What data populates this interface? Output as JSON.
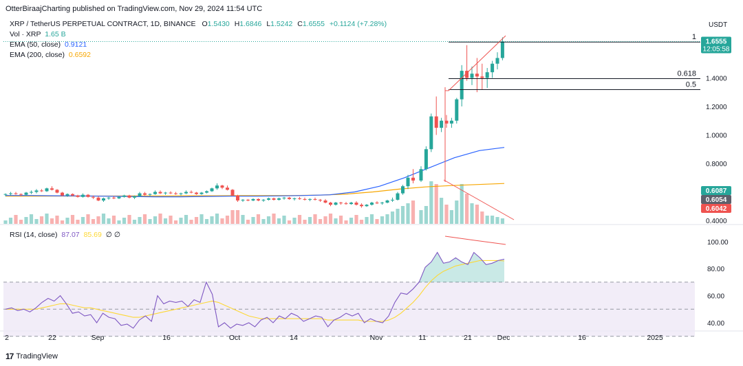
{
  "header": {
    "publisher": "OtterBiraajCharting published on TradingView.com, Nov 29, 2024 11:54 UTC"
  },
  "legend": {
    "symbol": "XRP / TetherUS PERPETUAL CONTRACT, 1D, BINANCE",
    "o_label": "O",
    "o_value": "1.5430",
    "h_label": "H",
    "h_value": "1.6846",
    "l_label": "L",
    "l_value": "1.5242",
    "c_label": "C",
    "c_value": "1.6555",
    "change": "+0.1124 (+7.28%)",
    "vol_label": "Vol · XRP",
    "vol_value": "1.65 B",
    "ema50_label": "EMA (50, close)",
    "ema50_value": "0.9121",
    "ema200_label": "EMA (200, close)",
    "ema200_value": "0.6592",
    "rsi_label": "RSI (14, close)",
    "rsi_value": "87.07",
    "rsi_ma_value": "85.69",
    "rsi_extra": "∅ ∅"
  },
  "footer": {
    "brand": "TradingView"
  },
  "colors": {
    "up": "#26a69a",
    "down": "#ef5350",
    "ema50": "#2962ff",
    "ema200": "#f7a600",
    "rsi": "#7e57c2",
    "rsi_ma": "#fdd835",
    "fib": "#131722"
  },
  "chart_data": [
    {
      "type": "candlestick",
      "title": "XRP / TetherUS PERPETUAL CONTRACT, 1D, BINANCE",
      "x_tick_labels": [
        "2",
        "22",
        "Sep",
        "16",
        "Oct",
        "14",
        "Nov",
        "11",
        "21",
        "Dec",
        "16",
        "2025"
      ],
      "y_axis_label": "USDT",
      "y_tick_labels": [
        "1.4000",
        "1.2000",
        "1.0000",
        "0.8000",
        "0.4000"
      ],
      "ylim": [
        0.4,
        1.72
      ],
      "price_badges": [
        {
          "value": "1.6555",
          "sub": "12:05:58",
          "color": "#26a69a"
        },
        {
          "value": "0.6087",
          "color": "#26a69a"
        },
        {
          "value": "0.6054",
          "color": "#5d606b"
        },
        {
          "value": "0.6042",
          "color": "#ef5350"
        }
      ],
      "fib_levels": [
        {
          "label": "1",
          "value": 1.652
        },
        {
          "label": "0.618",
          "value": 1.395
        },
        {
          "label": "0.5",
          "value": 1.318
        }
      ],
      "bars_before_rally": [
        [
          0.58,
          0.59,
          0.57,
          0.585
        ],
        [
          0.585,
          0.6,
          0.575,
          0.59
        ],
        [
          0.59,
          0.6,
          0.58,
          0.585
        ],
        [
          0.585,
          0.59,
          0.57,
          0.58
        ],
        [
          0.58,
          0.6,
          0.575,
          0.595
        ],
        [
          0.595,
          0.61,
          0.585,
          0.6
        ],
        [
          0.6,
          0.62,
          0.59,
          0.61
        ],
        [
          0.61,
          0.62,
          0.6,
          0.605
        ],
        [
          0.605,
          0.63,
          0.6,
          0.625
        ],
        [
          0.625,
          0.64,
          0.61,
          0.615
        ],
        [
          0.615,
          0.62,
          0.59,
          0.595
        ],
        [
          0.595,
          0.6,
          0.57,
          0.575
        ],
        [
          0.575,
          0.59,
          0.565,
          0.585
        ],
        [
          0.585,
          0.59,
          0.57,
          0.575
        ],
        [
          0.575,
          0.58,
          0.56,
          0.565
        ],
        [
          0.565,
          0.59,
          0.56,
          0.58
        ],
        [
          0.58,
          0.585,
          0.56,
          0.565
        ],
        [
          0.565,
          0.575,
          0.55,
          0.56
        ],
        [
          0.56,
          0.57,
          0.535,
          0.54
        ],
        [
          0.54,
          0.56,
          0.53,
          0.555
        ],
        [
          0.555,
          0.565,
          0.545,
          0.56
        ],
        [
          0.56,
          0.57,
          0.55,
          0.555
        ],
        [
          0.555,
          0.57,
          0.55,
          0.565
        ],
        [
          0.565,
          0.58,
          0.56,
          0.575
        ],
        [
          0.575,
          0.58,
          0.555,
          0.56
        ],
        [
          0.56,
          0.575,
          0.55,
          0.57
        ],
        [
          0.57,
          0.6,
          0.565,
          0.59
        ],
        [
          0.59,
          0.6,
          0.575,
          0.58
        ],
        [
          0.58,
          0.59,
          0.57,
          0.585
        ],
        [
          0.585,
          0.61,
          0.58,
          0.6
        ],
        [
          0.6,
          0.61,
          0.585,
          0.59
        ],
        [
          0.59,
          0.6,
          0.58,
          0.595
        ],
        [
          0.595,
          0.605,
          0.585,
          0.59
        ],
        [
          0.59,
          0.6,
          0.58,
          0.585
        ],
        [
          0.585,
          0.595,
          0.575,
          0.59
        ],
        [
          0.59,
          0.61,
          0.585,
          0.6
        ],
        [
          0.6,
          0.61,
          0.59,
          0.595
        ],
        [
          0.595,
          0.6,
          0.58,
          0.585
        ],
        [
          0.585,
          0.6,
          0.58,
          0.595
        ],
        [
          0.595,
          0.61,
          0.59,
          0.605
        ],
        [
          0.605,
          0.63,
          0.6,
          0.625
        ],
        [
          0.625,
          0.66,
          0.615,
          0.645
        ],
        [
          0.645,
          0.65,
          0.62,
          0.63
        ],
        [
          0.63,
          0.645,
          0.61,
          0.615
        ],
        [
          0.615,
          0.62,
          0.57,
          0.575
        ],
        [
          0.575,
          0.58,
          0.53,
          0.54
        ],
        [
          0.54,
          0.55,
          0.53,
          0.545
        ],
        [
          0.545,
          0.55,
          0.535,
          0.54
        ],
        [
          0.54,
          0.555,
          0.535,
          0.55
        ],
        [
          0.55,
          0.555,
          0.535,
          0.54
        ],
        [
          0.54,
          0.55,
          0.53,
          0.545
        ],
        [
          0.545,
          0.56,
          0.54,
          0.555
        ],
        [
          0.555,
          0.56,
          0.54,
          0.545
        ],
        [
          0.545,
          0.56,
          0.54,
          0.555
        ],
        [
          0.555,
          0.565,
          0.545,
          0.56
        ],
        [
          0.56,
          0.565,
          0.545,
          0.55
        ],
        [
          0.55,
          0.56,
          0.54,
          0.555
        ],
        [
          0.555,
          0.565,
          0.545,
          0.55
        ],
        [
          0.55,
          0.56,
          0.54,
          0.545
        ],
        [
          0.545,
          0.555,
          0.535,
          0.55
        ],
        [
          0.55,
          0.56,
          0.54,
          0.545
        ],
        [
          0.545,
          0.55,
          0.53,
          0.54
        ],
        [
          0.54,
          0.55,
          0.52,
          0.525
        ],
        [
          0.525,
          0.53,
          0.5,
          0.51
        ],
        [
          0.51,
          0.53,
          0.505,
          0.525
        ],
        [
          0.525,
          0.53,
          0.51,
          0.52
        ],
        [
          0.52,
          0.53,
          0.51,
          0.515
        ],
        [
          0.515,
          0.53,
          0.51,
          0.525
        ],
        [
          0.525,
          0.535,
          0.505,
          0.51
        ],
        [
          0.51,
          0.52,
          0.49,
          0.5
        ],
        [
          0.5,
          0.515,
          0.495,
          0.51
        ],
        [
          0.51,
          0.53,
          0.505,
          0.525
        ],
        [
          0.525,
          0.535,
          0.515,
          0.52
        ],
        [
          0.52,
          0.53,
          0.51,
          0.525
        ],
        [
          0.525,
          0.545,
          0.52,
          0.54
        ],
        [
          0.54,
          0.56,
          0.53,
          0.545
        ],
        [
          0.545,
          0.6,
          0.54,
          0.59
        ],
        [
          0.59,
          0.65,
          0.58,
          0.64
        ],
        [
          0.64,
          0.72,
          0.62,
          0.7
        ],
        [
          0.7,
          0.76,
          0.66,
          0.68
        ]
      ],
      "bars_rally": [
        [
          0.68,
          0.78,
          0.67,
          0.76
        ],
        [
          0.76,
          0.92,
          0.75,
          0.9
        ],
        [
          0.9,
          1.15,
          0.88,
          1.13
        ],
        [
          1.13,
          1.27,
          1.0,
          1.05
        ],
        [
          1.05,
          1.12,
          1.02,
          1.1
        ],
        [
          1.1,
          1.14,
          1.05,
          1.08
        ],
        [
          1.08,
          1.12,
          1.05,
          1.1
        ],
        [
          1.1,
          1.26,
          1.08,
          1.25
        ],
        [
          1.25,
          1.49,
          1.2,
          1.45
        ],
        [
          1.45,
          1.63,
          1.38,
          1.4
        ],
        [
          1.4,
          1.48,
          1.35,
          1.43
        ],
        [
          1.43,
          1.54,
          1.3,
          1.41
        ],
        [
          1.41,
          1.5,
          1.32,
          1.4
        ],
        [
          1.4,
          1.47,
          1.33,
          1.44
        ],
        [
          1.44,
          1.52,
          1.4,
          1.5
        ],
        [
          1.5,
          1.58,
          1.46,
          1.54
        ],
        [
          1.54,
          1.685,
          1.524,
          1.6555
        ]
      ],
      "ema50": [
        0.575,
        0.575,
        0.573,
        0.572,
        0.57,
        0.568,
        0.566,
        0.566,
        0.568,
        0.57,
        0.57,
        0.572,
        0.575,
        0.58,
        0.6,
        0.64,
        0.7,
        0.77,
        0.84,
        0.89,
        0.9121
      ],
      "ema200": [
        0.57,
        0.57,
        0.571,
        0.571,
        0.571,
        0.572,
        0.572,
        0.573,
        0.573,
        0.574,
        0.574,
        0.575,
        0.578,
        0.585,
        0.6,
        0.62,
        0.635,
        0.645,
        0.652,
        0.6592
      ]
    },
    {
      "type": "line",
      "title": "RSI (14, close)",
      "y_tick_labels": [
        "100.00",
        "80.00",
        "60.00",
        "40.00"
      ],
      "ylim": [
        30,
        100
      ],
      "rsi": [
        50,
        51,
        49,
        50,
        48,
        51,
        55,
        58,
        56,
        60,
        54,
        47,
        48,
        45,
        46,
        40,
        47,
        44,
        43,
        38,
        39,
        36,
        42,
        45,
        41,
        60,
        54,
        56,
        55,
        56,
        52,
        57,
        55,
        70,
        61,
        37,
        40,
        36,
        39,
        38,
        40,
        37,
        42,
        44,
        40,
        45,
        43,
        47,
        45,
        41,
        43,
        45,
        44,
        37,
        42,
        44,
        47,
        45,
        47,
        40,
        43,
        41,
        40,
        45,
        55,
        62,
        61,
        65,
        70,
        81,
        85,
        92,
        84,
        85,
        88,
        85,
        83,
        92,
        88,
        83,
        84,
        86,
        87
      ],
      "rsi_ma": [
        50,
        50,
        50,
        50,
        50,
        50,
        51,
        52,
        53,
        54,
        54,
        53,
        52,
        51,
        51,
        50,
        49,
        48,
        47,
        46,
        45,
        44,
        44,
        45,
        46,
        47,
        48,
        49,
        50,
        51,
        52,
        53,
        54,
        55,
        56,
        55,
        53,
        51,
        49,
        47,
        45,
        44,
        43,
        43,
        43,
        43,
        43,
        43,
        43,
        43,
        43,
        43,
        43,
        42,
        42,
        42,
        42,
        42,
        42,
        41,
        41,
        41,
        41,
        42,
        44,
        47,
        51,
        55,
        60,
        66,
        71,
        75,
        78,
        80,
        82,
        83,
        84,
        85,
        86,
        86,
        86,
        86,
        85.69
      ]
    }
  ]
}
